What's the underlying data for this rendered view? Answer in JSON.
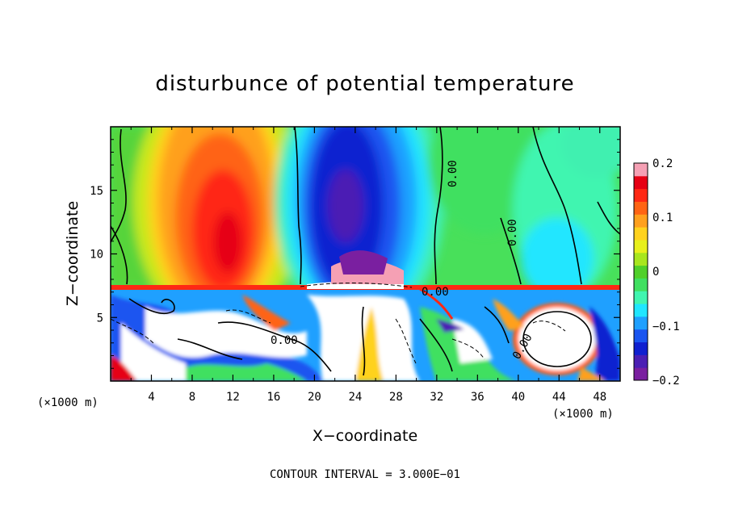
{
  "chart_data": {
    "type": "heatmap",
    "title": "disturbunce of potential temperature",
    "xlabel": "X−coordinate",
    "ylabel": "Z−coordinate",
    "x_unit_left": "(×1000 m)",
    "x_unit_right": "(×1000 m)",
    "xlim": [
      0,
      50
    ],
    "ylim": [
      0,
      20
    ],
    "xticks": [
      "4",
      "8",
      "12",
      "16",
      "20",
      "24",
      "28",
      "32",
      "36",
      "40",
      "44",
      "48"
    ],
    "yticks": [
      "5",
      "10",
      "15"
    ],
    "colorbar": {
      "range": [
        -0.2,
        0.2
      ],
      "ticks": [
        "0.2",
        "0.1",
        "0",
        "−0.1",
        "−0.2"
      ],
      "colors": [
        "#7a1fa0",
        "#4b1fb4",
        "#1020d0",
        "#1a55f0",
        "#1fa0ff",
        "#20e6ff",
        "#40f5b0",
        "#40e060",
        "#50d02a",
        "#a8e61e",
        "#e8f01c",
        "#ffd21e",
        "#ffa01e",
        "#ff6414",
        "#ff2814",
        "#e60014",
        "#f5a0b4"
      ]
    },
    "contour_labels": [
      "0.00",
      "0.00",
      "0.00",
      "0.00",
      "0.00"
    ],
    "contour_interval_text": "CONTOUR INTERVAL = 3.000E−01",
    "upper_layer_features": [
      {
        "name": "warm-plume",
        "x_center": 11,
        "z_center": 12.5,
        "value": 0.17
      },
      {
        "name": "cold-plume",
        "x_center": 24,
        "z_center": 14,
        "value": -0.19
      },
      {
        "name": "weak-warm-right",
        "x_center": 36,
        "z_center": 14,
        "value": 0.02
      },
      {
        "name": "weak-cold-far-right",
        "x_center": 44,
        "z_center": 12,
        "value": -0.05
      }
    ]
  }
}
